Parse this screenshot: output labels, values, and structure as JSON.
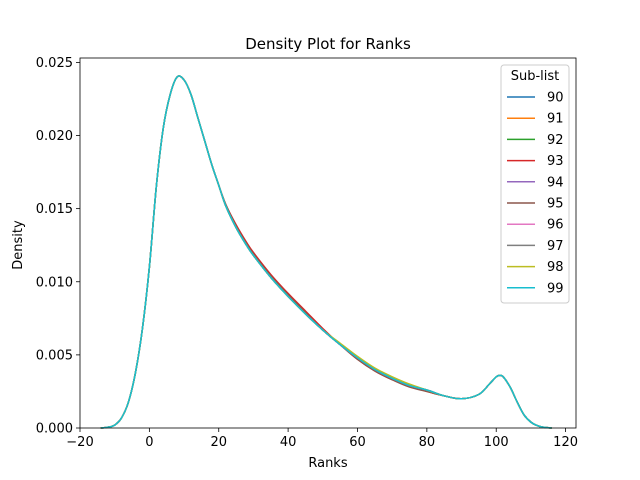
{
  "chart_data": {
    "type": "line",
    "title": "Density Plot for Ranks",
    "xlabel": "Ranks",
    "ylabel": "Density",
    "xlim": [
      -20,
      123
    ],
    "ylim": [
      0,
      0.0253
    ],
    "xticks": [
      -20,
      0,
      20,
      40,
      60,
      80,
      100,
      120
    ],
    "xtick_labels": [
      "−20",
      "0",
      "20",
      "40",
      "60",
      "80",
      "100",
      "120"
    ],
    "yticks": [
      0,
      0.005,
      0.01,
      0.015,
      0.02,
      0.025
    ],
    "ytick_labels": [
      "0.000",
      "0.005",
      "0.010",
      "0.015",
      "0.020",
      "0.025"
    ],
    "grid": false,
    "legend": {
      "title": "Sub-list",
      "position": "top-right"
    },
    "x": [
      -14,
      -12,
      -10,
      -8,
      -6,
      -4,
      -2,
      0,
      2,
      4,
      6,
      8,
      10,
      12,
      14,
      16,
      18,
      20,
      22,
      25,
      28,
      30,
      35,
      40,
      45,
      50,
      55,
      60,
      65,
      70,
      75,
      80,
      85,
      90,
      95,
      98,
      100,
      101,
      102,
      104,
      106,
      108,
      110,
      112,
      114,
      116
    ],
    "series": [
      {
        "name": "90",
        "color": "#1f77b4",
        "values": [
          0,
          5e-05,
          0.0002,
          0.0007,
          0.0018,
          0.0038,
          0.0068,
          0.011,
          0.0165,
          0.0205,
          0.0228,
          0.024,
          0.0238,
          0.0228,
          0.0212,
          0.0196,
          0.018,
          0.0166,
          0.0152,
          0.0137,
          0.0125,
          0.0118,
          0.0103,
          0.009,
          0.0078,
          0.0067,
          0.0057,
          0.0048,
          0.004,
          0.0034,
          0.0029,
          0.0026,
          0.0022,
          0.002,
          0.0023,
          0.003,
          0.0035,
          0.0036,
          0.0035,
          0.0028,
          0.0018,
          0.0009,
          0.0004,
          0.00015,
          4e-05,
          0
        ]
      },
      {
        "name": "91",
        "color": "#ff7f0e",
        "values": [
          0,
          5e-05,
          0.0002,
          0.0007,
          0.0018,
          0.0038,
          0.0068,
          0.011,
          0.0165,
          0.0205,
          0.0228,
          0.024,
          0.0238,
          0.0228,
          0.0212,
          0.0196,
          0.018,
          0.0166,
          0.0152,
          0.0138,
          0.0126,
          0.0119,
          0.0104,
          0.0091,
          0.0079,
          0.0067,
          0.0057,
          0.0048,
          0.004,
          0.0034,
          0.0029,
          0.0025,
          0.0022,
          0.002,
          0.0023,
          0.003,
          0.0035,
          0.0036,
          0.0035,
          0.0028,
          0.0018,
          0.0009,
          0.0004,
          0.00015,
          4e-05,
          0
        ]
      },
      {
        "name": "92",
        "color": "#2ca02c",
        "values": [
          0,
          5e-05,
          0.0002,
          0.0007,
          0.0018,
          0.0038,
          0.0068,
          0.011,
          0.0165,
          0.0205,
          0.0228,
          0.024,
          0.0238,
          0.0228,
          0.0212,
          0.0196,
          0.018,
          0.0166,
          0.0152,
          0.0137,
          0.0125,
          0.0118,
          0.0103,
          0.009,
          0.0078,
          0.0067,
          0.0057,
          0.0048,
          0.004,
          0.0034,
          0.0029,
          0.0026,
          0.0022,
          0.002,
          0.0023,
          0.003,
          0.0035,
          0.0036,
          0.0035,
          0.0028,
          0.0018,
          0.0009,
          0.0004,
          0.00015,
          4e-05,
          0
        ]
      },
      {
        "name": "93",
        "color": "#d62728",
        "values": [
          0,
          5e-05,
          0.0002,
          0.0007,
          0.0018,
          0.0038,
          0.0068,
          0.011,
          0.0165,
          0.0205,
          0.0228,
          0.024,
          0.0238,
          0.0228,
          0.0212,
          0.0196,
          0.018,
          0.0166,
          0.0153,
          0.0139,
          0.0127,
          0.012,
          0.0105,
          0.0092,
          0.008,
          0.0068,
          0.0057,
          0.0047,
          0.0039,
          0.0033,
          0.0029,
          0.0025,
          0.0022,
          0.002,
          0.0023,
          0.003,
          0.0035,
          0.0036,
          0.0035,
          0.0028,
          0.0018,
          0.0009,
          0.0004,
          0.00015,
          4e-05,
          0
        ]
      },
      {
        "name": "94",
        "color": "#9467bd",
        "values": [
          0,
          5e-05,
          0.0002,
          0.0007,
          0.0018,
          0.0038,
          0.0068,
          0.011,
          0.0165,
          0.0205,
          0.0228,
          0.024,
          0.0238,
          0.0228,
          0.0212,
          0.0196,
          0.018,
          0.0166,
          0.0152,
          0.0137,
          0.0125,
          0.0118,
          0.0103,
          0.009,
          0.0078,
          0.0067,
          0.0057,
          0.0048,
          0.004,
          0.0034,
          0.0029,
          0.0026,
          0.0022,
          0.002,
          0.0023,
          0.003,
          0.0035,
          0.0036,
          0.0035,
          0.0028,
          0.0018,
          0.0009,
          0.0004,
          0.00015,
          4e-05,
          0
        ]
      },
      {
        "name": "95",
        "color": "#8c564b",
        "values": [
          0,
          5e-05,
          0.0002,
          0.0007,
          0.0018,
          0.0038,
          0.0068,
          0.011,
          0.0165,
          0.0205,
          0.0228,
          0.024,
          0.0238,
          0.0228,
          0.0212,
          0.0196,
          0.018,
          0.0166,
          0.0153,
          0.0138,
          0.0126,
          0.0119,
          0.0104,
          0.0091,
          0.0079,
          0.0067,
          0.0057,
          0.0047,
          0.0039,
          0.0033,
          0.0028,
          0.0025,
          0.0022,
          0.002,
          0.0023,
          0.003,
          0.0035,
          0.0036,
          0.0035,
          0.0028,
          0.0018,
          0.0009,
          0.0004,
          0.00015,
          4e-05,
          0
        ]
      },
      {
        "name": "96",
        "color": "#e377c2",
        "values": [
          0,
          5e-05,
          0.0002,
          0.0007,
          0.0018,
          0.0038,
          0.0068,
          0.011,
          0.0165,
          0.0205,
          0.0228,
          0.024,
          0.0238,
          0.0228,
          0.0212,
          0.0196,
          0.018,
          0.0166,
          0.0152,
          0.0137,
          0.0125,
          0.0118,
          0.0103,
          0.009,
          0.0078,
          0.0067,
          0.0057,
          0.0048,
          0.004,
          0.0034,
          0.0029,
          0.0026,
          0.0022,
          0.002,
          0.0023,
          0.003,
          0.0035,
          0.0036,
          0.0035,
          0.0028,
          0.0018,
          0.0009,
          0.0004,
          0.00015,
          4e-05,
          0
        ]
      },
      {
        "name": "97",
        "color": "#7f7f7f",
        "values": [
          0,
          5e-05,
          0.0002,
          0.0007,
          0.0018,
          0.0038,
          0.0068,
          0.011,
          0.0165,
          0.0205,
          0.0228,
          0.024,
          0.0238,
          0.0228,
          0.0212,
          0.0196,
          0.018,
          0.0166,
          0.0152,
          0.0137,
          0.0125,
          0.0118,
          0.0103,
          0.009,
          0.0078,
          0.0067,
          0.0057,
          0.0048,
          0.004,
          0.0034,
          0.0029,
          0.0026,
          0.0022,
          0.002,
          0.0023,
          0.003,
          0.0035,
          0.0036,
          0.0035,
          0.0028,
          0.0018,
          0.0009,
          0.0004,
          0.00015,
          4e-05,
          0
        ]
      },
      {
        "name": "98",
        "color": "#bcbd22",
        "values": [
          0,
          5e-05,
          0.0002,
          0.0007,
          0.0018,
          0.0038,
          0.0068,
          0.011,
          0.0165,
          0.0205,
          0.0228,
          0.024,
          0.0238,
          0.0228,
          0.0212,
          0.0196,
          0.018,
          0.0166,
          0.0152,
          0.0137,
          0.0125,
          0.0118,
          0.0103,
          0.009,
          0.0078,
          0.0067,
          0.0058,
          0.0049,
          0.0041,
          0.0035,
          0.003,
          0.0026,
          0.0022,
          0.002,
          0.0023,
          0.003,
          0.0035,
          0.0036,
          0.0035,
          0.0028,
          0.0018,
          0.0009,
          0.0004,
          0.00015,
          4e-05,
          0
        ]
      },
      {
        "name": "99",
        "color": "#17becf",
        "values": [
          0,
          5e-05,
          0.0002,
          0.0007,
          0.0018,
          0.0038,
          0.0068,
          0.011,
          0.0165,
          0.0205,
          0.0228,
          0.024,
          0.0238,
          0.0228,
          0.0212,
          0.0196,
          0.018,
          0.0166,
          0.0152,
          0.0137,
          0.0125,
          0.0118,
          0.0103,
          0.009,
          0.0078,
          0.0067,
          0.0057,
          0.0048,
          0.004,
          0.0034,
          0.0029,
          0.0026,
          0.0022,
          0.002,
          0.0023,
          0.003,
          0.0035,
          0.0036,
          0.0035,
          0.0028,
          0.0018,
          0.0009,
          0.0004,
          0.00015,
          4e-05,
          0
        ]
      }
    ]
  }
}
